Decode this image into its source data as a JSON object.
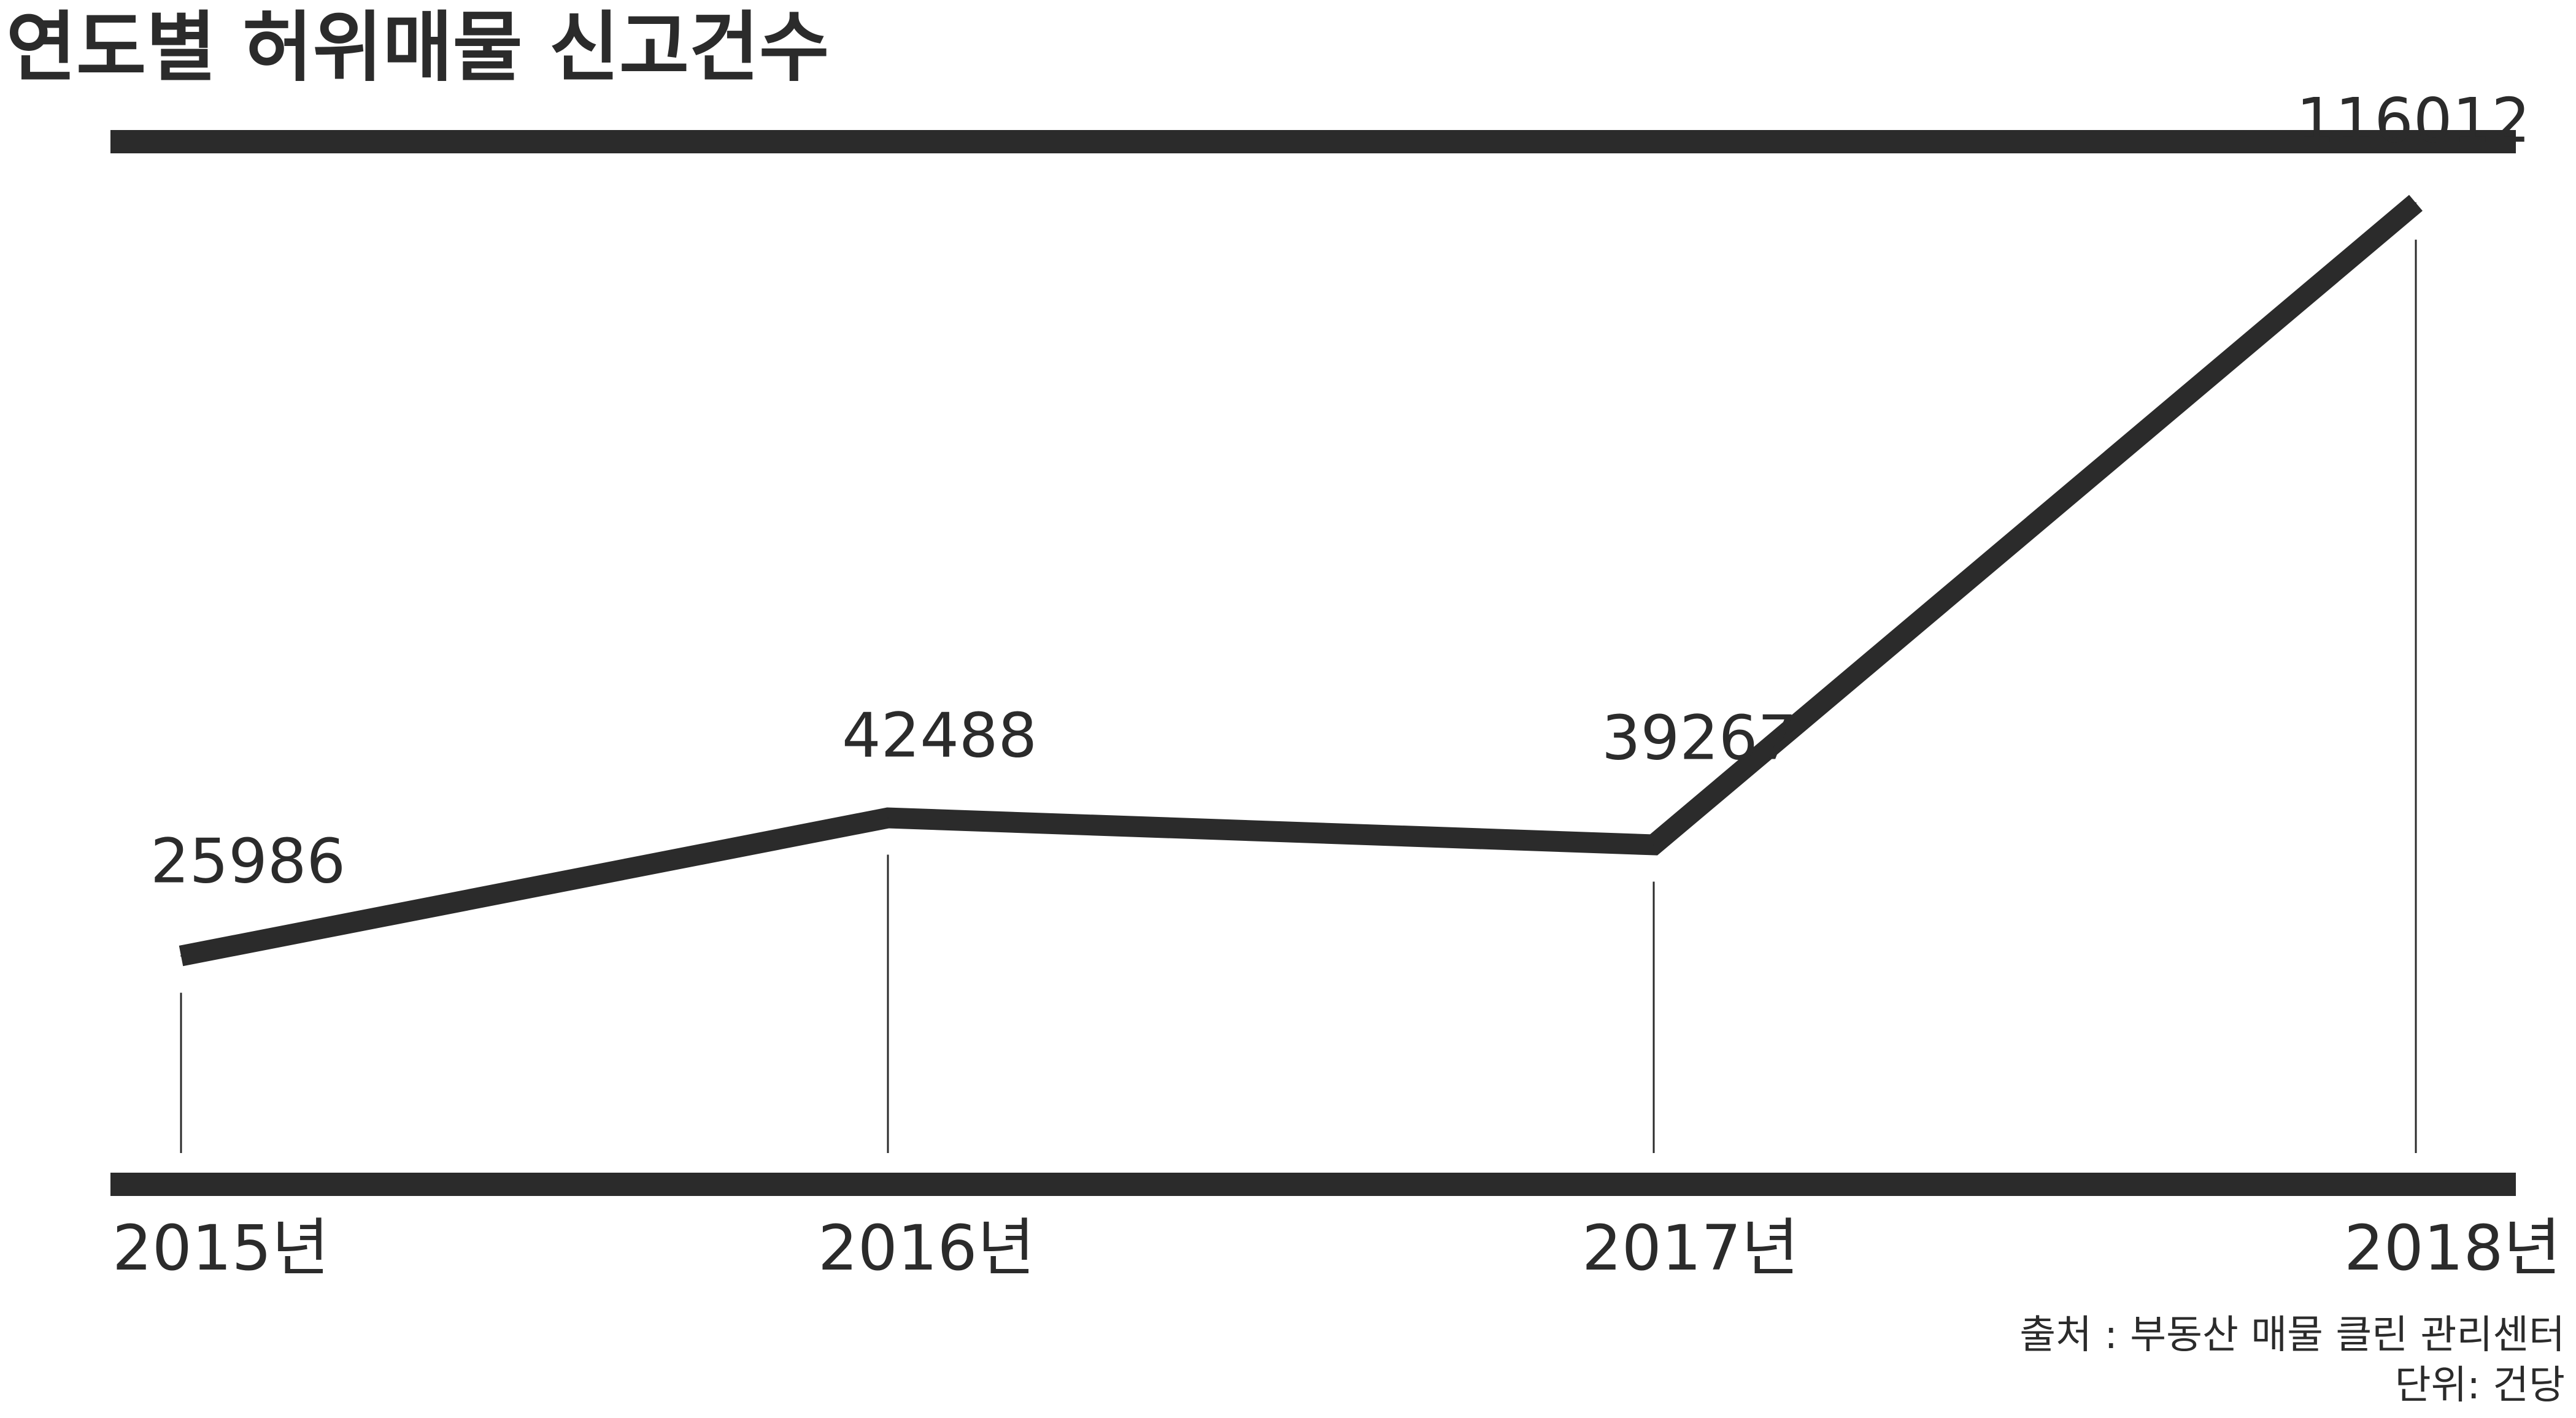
{
  "chart_data": {
    "type": "line",
    "title": "연도별 허위매물 신고건수",
    "categories": [
      "2015년",
      "2016년",
      "2017년",
      "2018년"
    ],
    "values": [
      25986,
      42488,
      39267,
      116012
    ],
    "value_labels": [
      "25986",
      "42488",
      "39267",
      "116012"
    ],
    "xlabel": "",
    "ylabel": "",
    "ylim": [
      0,
      130000
    ],
    "grid": false,
    "legend": "none",
    "source": "출처 : 부동산 매물 클린 관리센터",
    "unit": "단위: 건당",
    "colors": {
      "line": "#2b2b2b",
      "text": "#2b2b2b",
      "background": "#ffffff"
    }
  }
}
